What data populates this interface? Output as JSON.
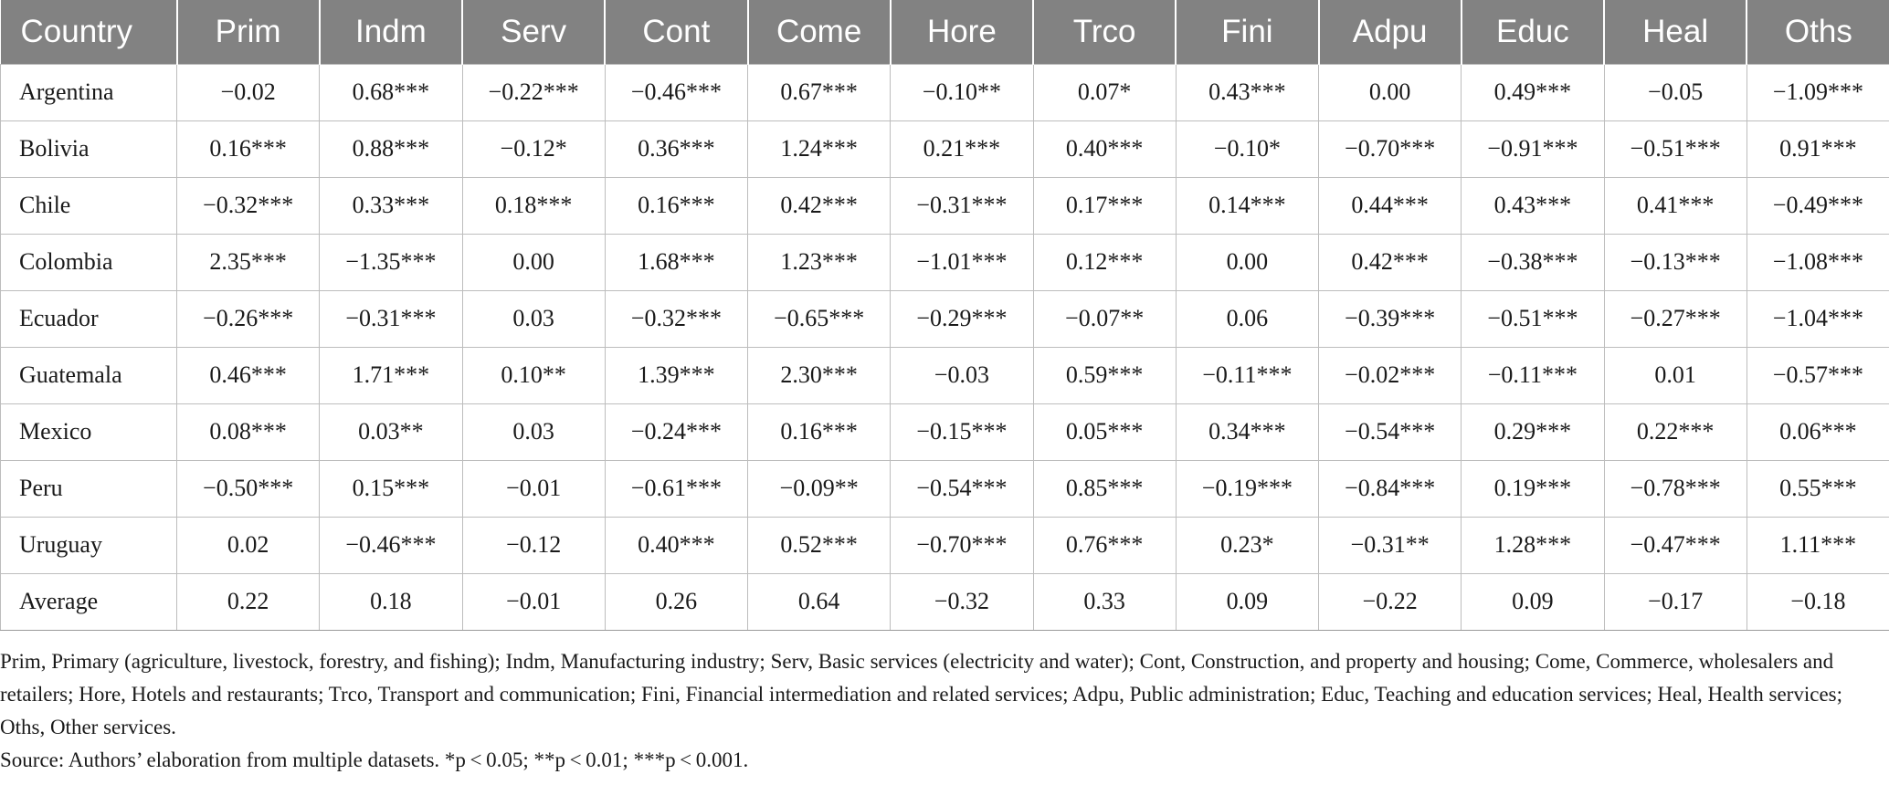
{
  "table": {
    "headers": [
      "Country",
      "Prim",
      "Indm",
      "Serv",
      "Cont",
      "Come",
      "Hore",
      "Trco",
      "Fini",
      "Adpu",
      "Educ",
      "Heal",
      "Oths"
    ],
    "rows": [
      [
        "Argentina",
        "−0.02",
        "0.68***",
        "−0.22***",
        "−0.46***",
        "0.67***",
        "−0.10**",
        "0.07*",
        "0.43***",
        "0.00",
        "0.49***",
        "−0.05",
        "−1.09***"
      ],
      [
        "Bolivia",
        "0.16***",
        "0.88***",
        "−0.12*",
        "0.36***",
        "1.24***",
        "0.21***",
        "0.40***",
        "−0.10*",
        "−0.70***",
        "−0.91***",
        "−0.51***",
        "0.91***"
      ],
      [
        "Chile",
        "−0.32***",
        "0.33***",
        "0.18***",
        "0.16***",
        "0.42***",
        "−0.31***",
        "0.17***",
        "0.14***",
        "0.44***",
        "0.43***",
        "0.41***",
        "−0.49***"
      ],
      [
        "Colombia",
        "2.35***",
        "−1.35***",
        "0.00",
        "1.68***",
        "1.23***",
        "−1.01***",
        "0.12***",
        "0.00",
        "0.42***",
        "−0.38***",
        "−0.13***",
        "−1.08***"
      ],
      [
        "Ecuador",
        "−0.26***",
        "−0.31***",
        "0.03",
        "−0.32***",
        "−0.65***",
        "−0.29***",
        "−0.07**",
        "0.06",
        "−0.39***",
        "−0.51***",
        "−0.27***",
        "−1.04***"
      ],
      [
        "Guatemala",
        "0.46***",
        "1.71***",
        "0.10**",
        "1.39***",
        "2.30***",
        "−0.03",
        "0.59***",
        "−0.11***",
        "−0.02***",
        "−0.11***",
        "0.01",
        "−0.57***"
      ],
      [
        "Mexico",
        "0.08***",
        "0.03**",
        "0.03",
        "−0.24***",
        "0.16***",
        "−0.15***",
        "0.05***",
        "0.34***",
        "−0.54***",
        "0.29***",
        "0.22***",
        "0.06***"
      ],
      [
        "Peru",
        "−0.50***",
        "0.15***",
        "−0.01",
        "−0.61***",
        "−0.09**",
        "−0.54***",
        "0.85***",
        "−0.19***",
        "−0.84***",
        "0.19***",
        "−0.78***",
        "0.55***"
      ],
      [
        "Uruguay",
        "0.02",
        "−0.46***",
        "−0.12",
        "0.40***",
        "0.52***",
        "−0.70***",
        "0.76***",
        "0.23*",
        "−0.31**",
        "1.28***",
        "−0.47***",
        "1.11***"
      ],
      [
        "Average",
        "0.22",
        "0.18",
        "−0.01",
        "0.26",
        "0.64",
        "−0.32",
        "0.33",
        "0.09",
        "−0.22",
        "0.09",
        "−0.17",
        "−0.18"
      ]
    ]
  },
  "notes": {
    "abbreviations": "Prim, Primary (agriculture, livestock, forestry, and fishing); Indm, Manufacturing industry; Serv, Basic services (electricity and water); Cont, Construction, and property and housing; Come, Commerce, wholesalers and retailers; Hore, Hotels and restaurants; Trco, Transport and communication; Fini, Financial intermediation and related services; Adpu, Public administration; Educ, Teaching and education services; Heal, Health services; Oths, Other services.",
    "source": "Source: Authors’ elaboration from multiple datasets. *p < 0.05; **p < 0.01; ***p < 0.001."
  }
}
